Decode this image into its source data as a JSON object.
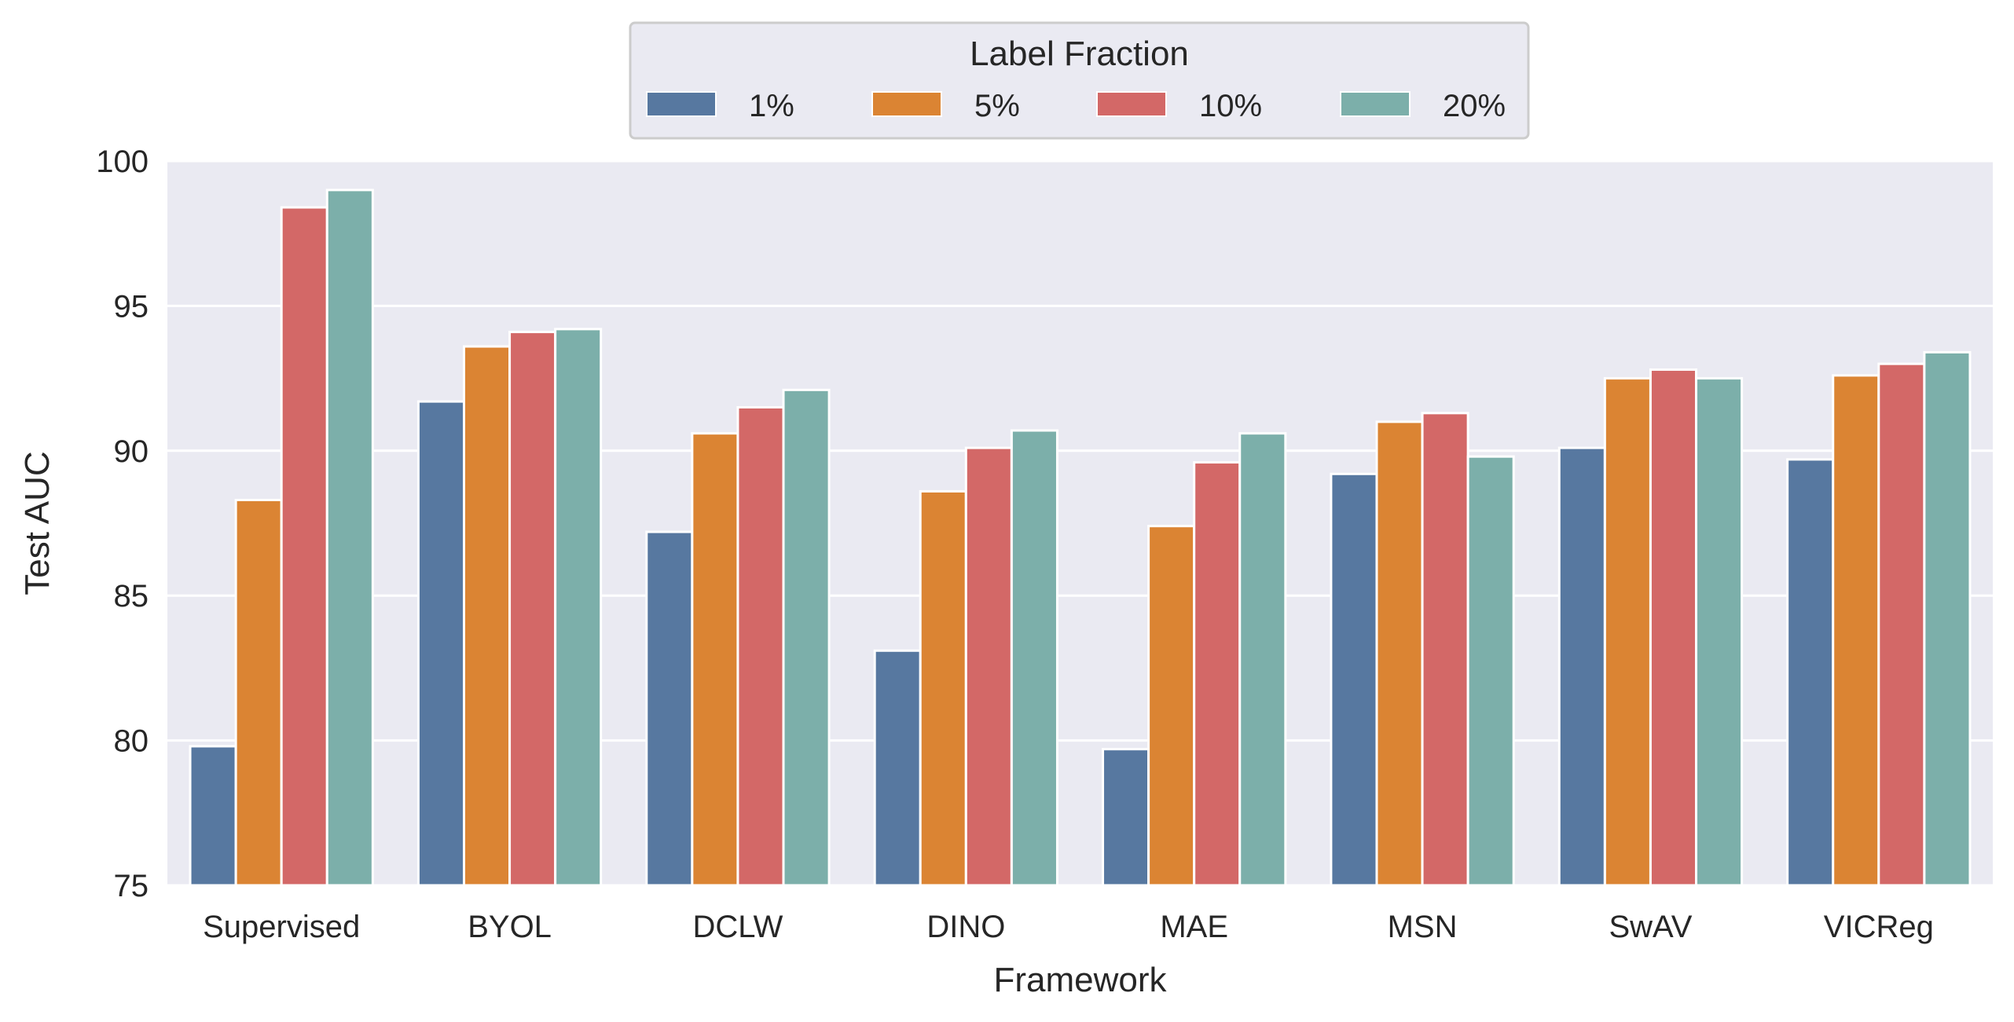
{
  "chart_data": {
    "type": "bar",
    "xlabel": "Framework",
    "ylabel": "Test AUC",
    "ylim": [
      75,
      100
    ],
    "yticks": [
      "75",
      "80",
      "85",
      "90",
      "95",
      "100"
    ],
    "grid": true,
    "legend": {
      "title": "Label Fraction",
      "placement": "top-center"
    },
    "categories": [
      "Supervised",
      "BYOL",
      "DCLW",
      "DINO",
      "MAE",
      "MSN",
      "SwAV",
      "VICReg"
    ],
    "series": [
      {
        "name": "1%",
        "color": "#5778a0",
        "values": [
          79.8,
          91.7,
          87.2,
          83.1,
          79.7,
          89.2,
          90.1,
          89.7
        ]
      },
      {
        "name": "5%",
        "color": "#db8433",
        "values": [
          88.3,
          93.6,
          90.6,
          88.6,
          87.4,
          91.0,
          92.5,
          92.6
        ]
      },
      {
        "name": "10%",
        "color": "#d36867",
        "values": [
          98.4,
          94.1,
          91.5,
          90.1,
          89.6,
          91.3,
          92.8,
          93.0
        ]
      },
      {
        "name": "20%",
        "color": "#7cafaa",
        "values": [
          99.0,
          94.2,
          92.1,
          90.7,
          90.6,
          89.8,
          92.5,
          93.4
        ]
      }
    ],
    "colors": {
      "plot_background": "#eaeaf2",
      "grid": "#ffffff",
      "text": "#262626"
    }
  }
}
